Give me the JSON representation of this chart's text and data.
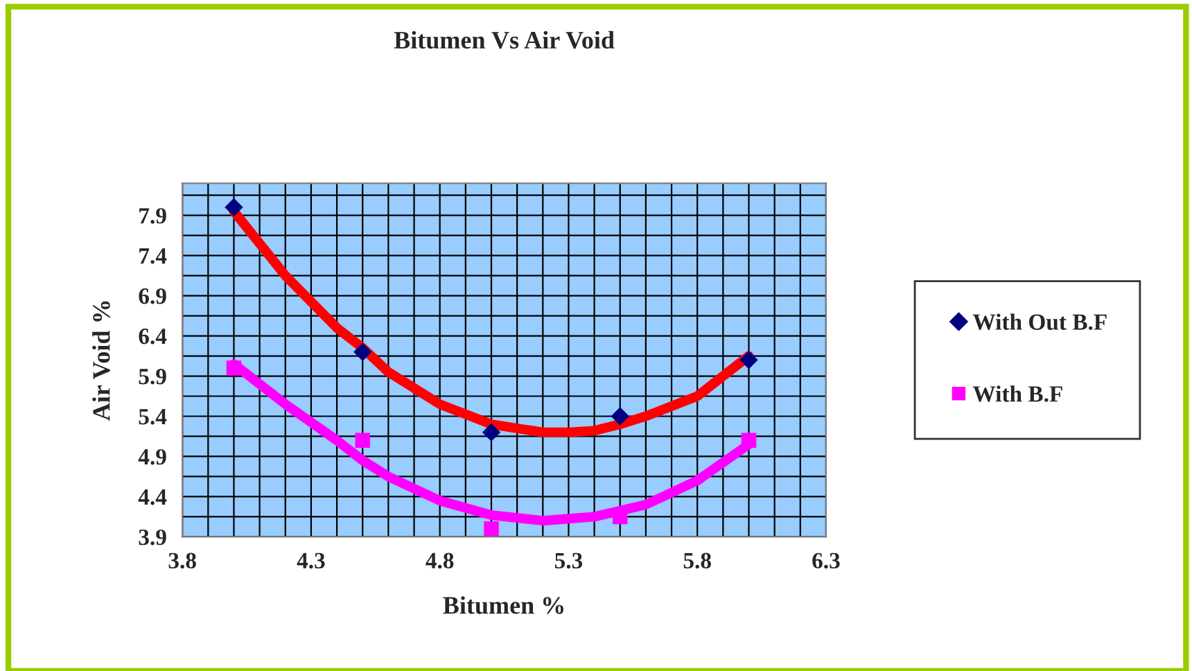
{
  "chart_data": {
    "type": "scatter",
    "title": "Bitumen Vs Air Void",
    "xlabel": "Bitumen %",
    "ylabel": "Air Void %",
    "xlim": [
      3.8,
      6.3
    ],
    "xticks": [
      3.8,
      {
        "value": 3.9,
        "label": null
      },
      {
        "value": 4.0,
        "label": null
      },
      {
        "value": 4.1,
        "label": null
      },
      {
        "value": 4.2,
        "label": null
      },
      4.3,
      {
        "value": 4.4,
        "label": null
      },
      {
        "value": 4.5,
        "label": null
      },
      {
        "value": 4.6,
        "label": null
      },
      {
        "value": 4.7,
        "label": null
      },
      4.8,
      {
        "value": 4.9,
        "label": null
      },
      {
        "value": 5.0,
        "label": null
      },
      {
        "value": 5.1,
        "label": null
      },
      {
        "value": 5.2,
        "label": null
      },
      5.3,
      {
        "value": 5.4,
        "label": null
      },
      {
        "value": 5.5,
        "label": null
      },
      {
        "value": 5.6,
        "label": null
      },
      {
        "value": 5.7,
        "label": null
      },
      5.8,
      {
        "value": 5.9,
        "label": null
      },
      {
        "value": 6.0,
        "label": null
      },
      {
        "value": 6.1,
        "label": null
      },
      {
        "value": 6.2,
        "label": null
      },
      6.3
    ],
    "ylim": [
      3.9,
      8.3
    ],
    "yticks": [
      3.9,
      {
        "value": 4.15,
        "label": null
      },
      4.4,
      {
        "value": 4.65,
        "label": null
      },
      4.9,
      {
        "value": 5.15,
        "label": null
      },
      5.4,
      {
        "value": 5.65,
        "label": null
      },
      5.9,
      {
        "value": 6.15,
        "label": null
      },
      6.4,
      {
        "value": 6.65,
        "label": null
      },
      6.9,
      {
        "value": 7.15,
        "label": null
      },
      7.4,
      {
        "value": 7.65,
        "label": null
      },
      7.9,
      {
        "value": 8.15,
        "label": null
      }
    ],
    "grid": true,
    "legend": "right",
    "series": [
      {
        "name": "With Out B.F",
        "marker": "diamond",
        "color": "#000080",
        "x": [
          4.0,
          4.5,
          5.0,
          5.5,
          6.0
        ],
        "values": [
          8.0,
          6.2,
          5.2,
          5.4,
          6.1
        ]
      },
      {
        "name": "With B.F",
        "marker": "square",
        "color": "#ff00ff",
        "x": [
          4.0,
          4.5,
          5.0,
          5.5,
          6.0
        ],
        "values": [
          6.0,
          5.1,
          4.0,
          4.15,
          5.1
        ]
      },
      {
        "type": "line",
        "color": "#ff0000",
        "x": [
          4.0,
          4.2,
          4.4,
          4.5,
          4.6,
          4.8,
          5.0,
          5.2,
          5.3,
          5.4,
          5.5,
          5.6,
          5.8,
          6.0
        ],
        "values": [
          7.95,
          7.15,
          6.5,
          6.25,
          5.95,
          5.55,
          5.3,
          5.2,
          5.2,
          5.22,
          5.3,
          5.4,
          5.65,
          6.15
        ]
      },
      {
        "type": "line",
        "color": "#ff00ff",
        "x": [
          4.0,
          4.2,
          4.4,
          4.5,
          4.6,
          4.8,
          5.0,
          5.2,
          5.4,
          5.6,
          5.8,
          6.0
        ],
        "values": [
          6.05,
          5.55,
          5.1,
          4.85,
          4.65,
          4.35,
          4.17,
          4.1,
          4.15,
          4.3,
          4.6,
          5.05
        ]
      }
    ]
  }
}
